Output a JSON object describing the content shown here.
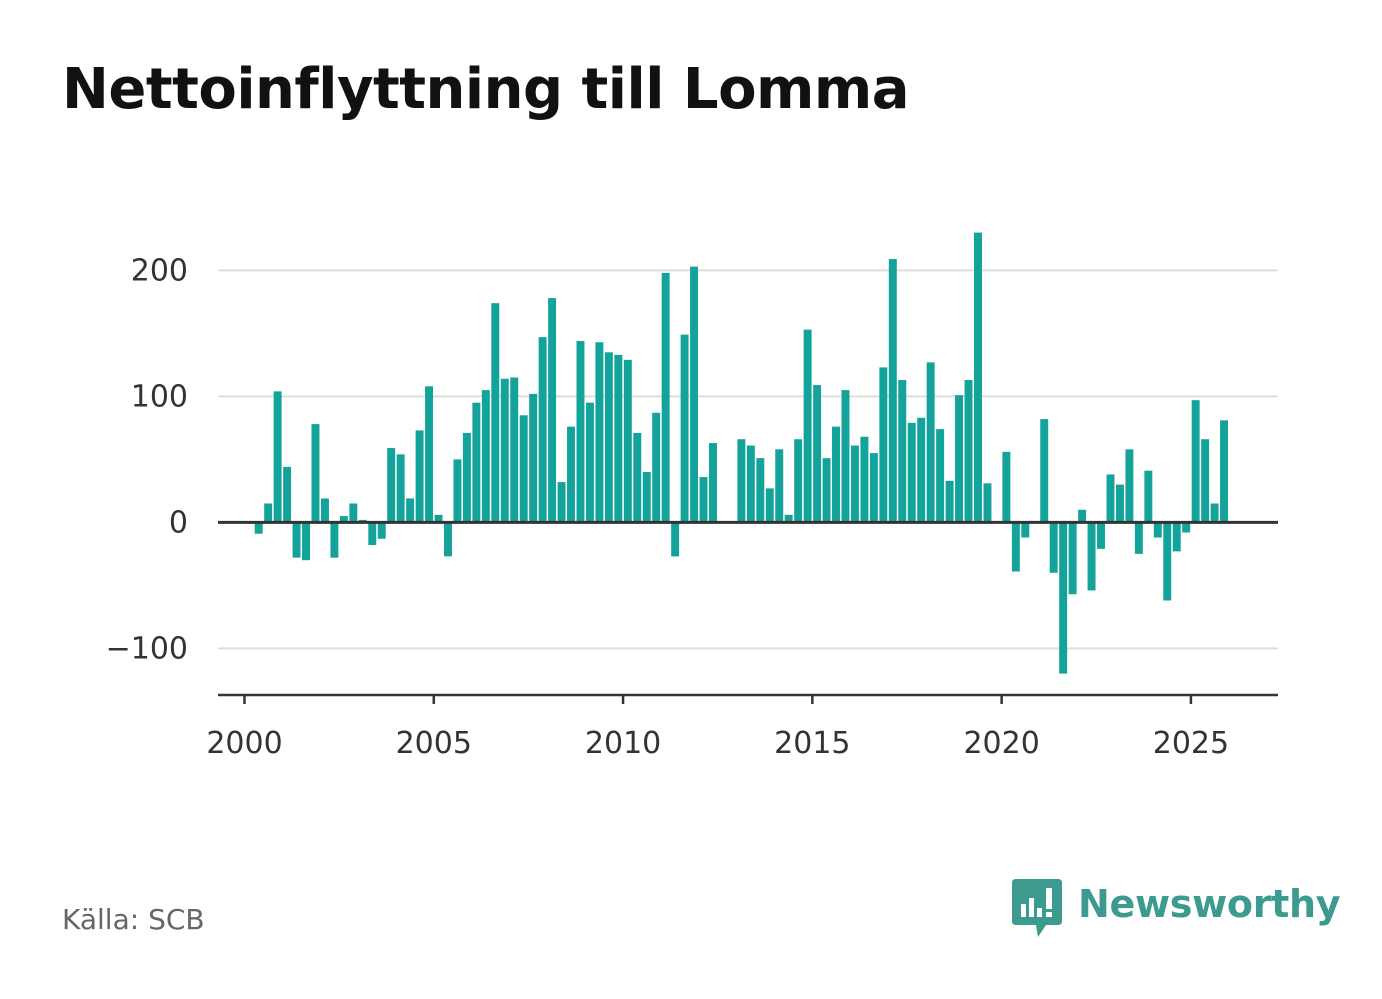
{
  "title": "Nettoinflyttning till Lomma",
  "source": "Källa: SCB",
  "logo": {
    "text": "Newsworthy",
    "icon": "newsworthy-speech-bubble-bar-icon",
    "color": "#3c9a8f"
  },
  "colors": {
    "bar": "#13a39a",
    "grid": "#dddddd",
    "axis": "#333333",
    "tick_text": "#333333"
  },
  "chart_data": {
    "type": "bar",
    "title": "Nettoinflyttning till Lomma",
    "xlabel": "",
    "ylabel": "",
    "xlim": [
      1999.3,
      2027.3
    ],
    "ylim": [
      -137,
      240
    ],
    "xticks": [
      2000,
      2005,
      2010,
      2015,
      2020,
      2025
    ],
    "xtick_labels": [
      "2000",
      "2005",
      "2010",
      "2015",
      "2020",
      "2025"
    ],
    "yticks": [
      -100,
      0,
      100,
      200
    ],
    "ytick_labels": [
      "−100",
      "0",
      "100",
      "200"
    ],
    "grid": true,
    "legend": "none",
    "x_start": 2000.125,
    "x_step": 0.25,
    "values": [
      0,
      -9,
      15,
      104,
      44,
      -28,
      -30,
      78,
      19,
      -28,
      5,
      15,
      2,
      -18,
      -13,
      59,
      54,
      19,
      73,
      108,
      6,
      -27,
      50,
      71,
      95,
      105,
      174,
      114,
      115,
      85,
      102,
      147,
      178,
      32,
      76,
      144,
      95,
      143,
      135,
      133,
      129,
      71,
      40,
      87,
      198,
      -27,
      149,
      203,
      36,
      63,
      0,
      0,
      66,
      61,
      51,
      27,
      58,
      6,
      66,
      153,
      109,
      51,
      76,
      105,
      61,
      68,
      55,
      123,
      209,
      113,
      79,
      83,
      127,
      74,
      33,
      101,
      113,
      230,
      31,
      0,
      56,
      -39,
      -12,
      0,
      82,
      -40,
      -120,
      -57,
      10,
      -54,
      -21,
      38,
      30,
      58,
      -25,
      41,
      -12,
      -62,
      -23,
      -8,
      97,
      66,
      15,
      81
    ]
  }
}
